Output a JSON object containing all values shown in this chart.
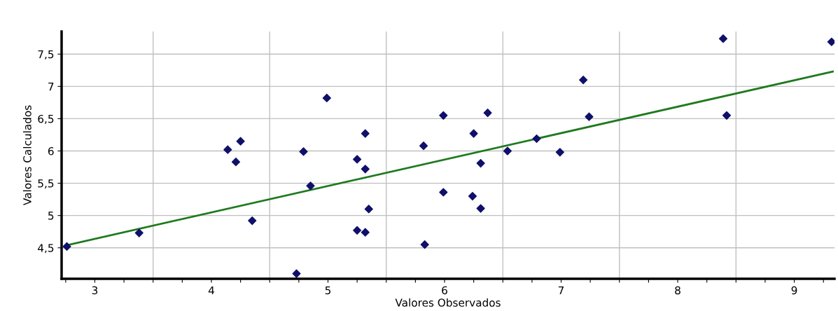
{
  "chart_data": {
    "type": "scatter",
    "xlabel": "Valores Observados",
    "ylabel": "Valores Calculados",
    "xlim": [
      2.715,
      9.345
    ],
    "ylim": [
      4.02,
      7.85
    ],
    "xticks": [
      {
        "value": 2.75,
        "label": null
      },
      3,
      {
        "value": 3.25,
        "label": null
      },
      {
        "value": 3.5,
        "label": null
      },
      {
        "value": 3.75,
        "label": null
      },
      4,
      {
        "value": 4.25,
        "label": null
      },
      {
        "value": 4.5,
        "label": null
      },
      {
        "value": 4.75,
        "label": null
      },
      5,
      {
        "value": 5.25,
        "label": null
      },
      {
        "value": 5.5,
        "label": null
      },
      {
        "value": 5.75,
        "label": null
      },
      6,
      {
        "value": 6.25,
        "label": null
      },
      {
        "value": 6.5,
        "label": null
      },
      {
        "value": 6.75,
        "label": null
      },
      7,
      {
        "value": 7.25,
        "label": null
      },
      {
        "value": 7.5,
        "label": null
      },
      {
        "value": 7.75,
        "label": null
      },
      8,
      {
        "value": 8.25,
        "label": null
      },
      {
        "value": 8.5,
        "label": null
      },
      {
        "value": 8.75,
        "label": null
      },
      9,
      {
        "value": 9.25,
        "label": null
      }
    ],
    "yticks": [
      {
        "value": 4.5,
        "label": "4,5"
      },
      {
        "value": 5,
        "label": "5"
      },
      {
        "value": 5.5,
        "label": "5,5"
      },
      {
        "value": 6,
        "label": "6"
      },
      {
        "value": 6.5,
        "label": "6,5"
      },
      {
        "value": 7,
        "label": "7"
      },
      {
        "value": 7.5,
        "label": "7,5"
      }
    ],
    "grid": true,
    "legend": false,
    "series": [
      {
        "type": "line",
        "color": "#1f7a1f",
        "marker": "none",
        "line_style": "solid",
        "x": [
          2.76,
          9.33
        ],
        "values": [
          4.54,
          7.23
        ]
      },
      {
        "color": "#10106b",
        "marker": "diamond",
        "x": [
          2.76,
          3.38,
          4.14,
          4.25,
          4.21,
          4.35,
          4.99,
          4.79,
          4.85,
          4.73,
          5.32,
          5.25,
          5.32,
          5.35,
          5.25,
          5.32,
          5.82,
          5.83,
          5.99,
          5.99,
          6.25,
          6.37,
          6.31,
          6.24,
          6.31,
          6.54,
          6.79,
          6.99,
          7.19,
          7.24,
          8.39,
          8.42,
          9.32
        ],
        "values": [
          4.52,
          4.73,
          6.02,
          6.15,
          5.83,
          4.92,
          6.82,
          5.99,
          5.46,
          4.1,
          6.27,
          5.87,
          5.72,
          5.1,
          4.77,
          4.74,
          6.08,
          4.55,
          6.55,
          5.36,
          6.27,
          6.59,
          5.81,
          5.3,
          5.11,
          6.0,
          6.19,
          5.98,
          7.1,
          6.53,
          7.74,
          6.55,
          7.69
        ]
      }
    ]
  }
}
